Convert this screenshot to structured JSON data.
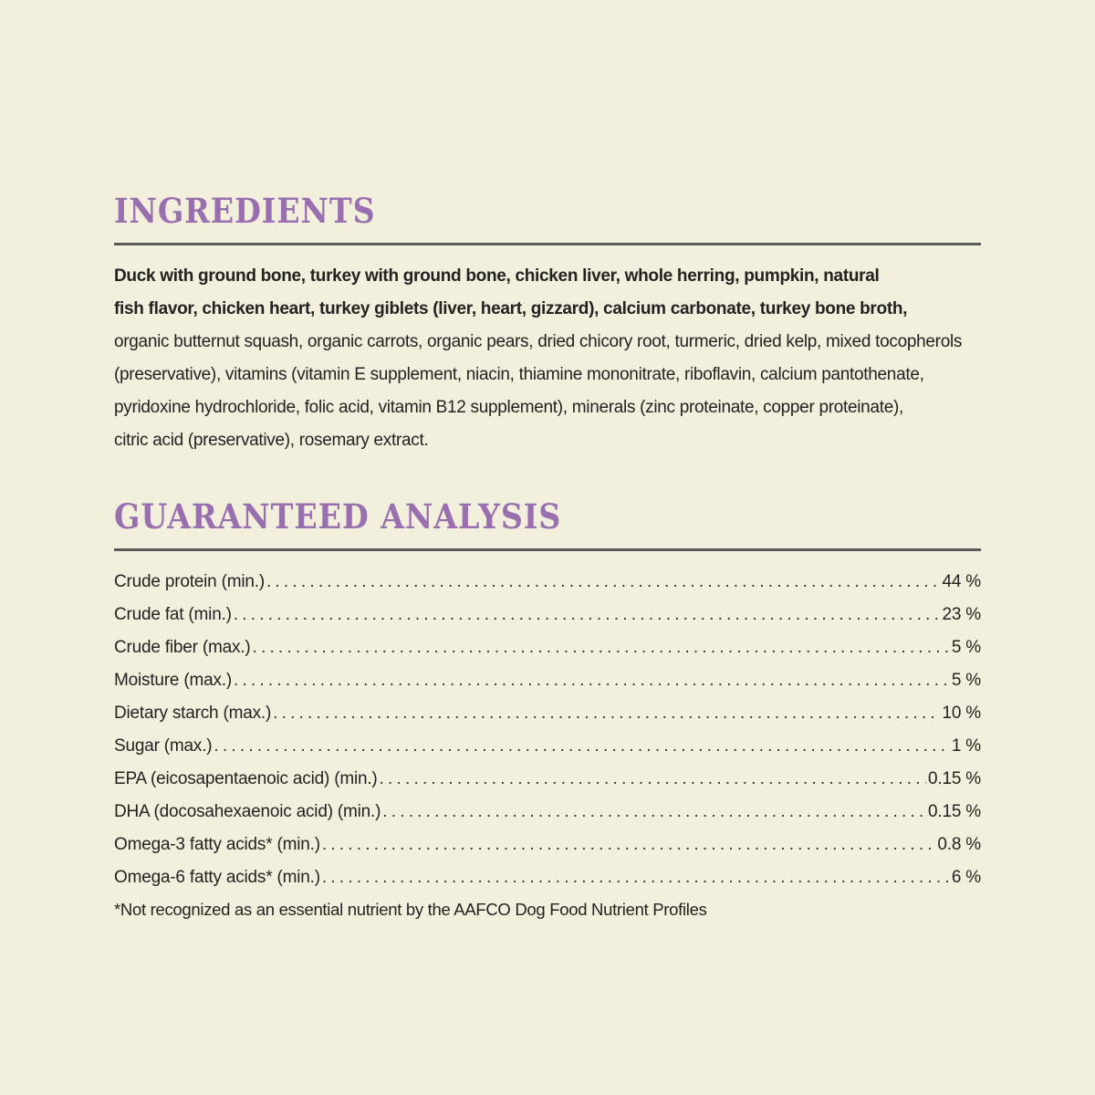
{
  "ingredients": {
    "heading": "INGREDIENTS",
    "lines": [
      {
        "text": "Duck with ground bone, turkey with ground bone, chicken liver, whole herring, pumpkin, natural",
        "bold": true
      },
      {
        "text": "fish flavor, chicken heart, turkey giblets (liver, heart, gizzard), calcium carbonate, turkey bone broth,",
        "bold": true
      },
      {
        "text": "organic butternut squash, organic carrots, organic pears, dried chicory root, turmeric, dried kelp, mixed tocopherols",
        "bold": false
      },
      {
        "text": "(preservative), vitamins (vitamin E supplement, niacin, thiamine mononitrate, riboflavin, calcium pantothenate,",
        "bold": false
      },
      {
        "text": "pyridoxine hydrochloride, folic acid, vitamin B12 supplement), minerals (zinc proteinate, copper proteinate),",
        "bold": false
      },
      {
        "text": "citric acid (preservative), rosemary extract.",
        "bold": false
      }
    ]
  },
  "analysis": {
    "heading": "GUARANTEED ANALYSIS",
    "rows": [
      {
        "label": "Crude protein (min.)",
        "value": "44 %"
      },
      {
        "label": "Crude fat (min.)",
        "value": "23 %"
      },
      {
        "label": "Crude fiber (max.)",
        "value": "5 %"
      },
      {
        "label": "Moisture (max.)",
        "value": "5 %"
      },
      {
        "label": "Dietary starch (max.)",
        "value": "10 %"
      },
      {
        "label": "Sugar (max.)",
        "value": "1 %"
      },
      {
        "label": "EPA (eicosapentaenoic acid) (min.)",
        "value": "0.15 %"
      },
      {
        "label": "DHA (docosahexaenoic acid) (min.)",
        "value": "0.15 %"
      },
      {
        "label": "Omega-3 fatty acids* (min.)",
        "value": "0.8 %"
      },
      {
        "label": "Omega-6 fatty acids* (min.)",
        "value": "6 %"
      }
    ],
    "footnote": "*Not recognized as an essential nutrient by the AAFCO Dog Food Nutrient Profiles"
  },
  "colors": {
    "background": "#f2f0dc",
    "heading": "#9a6fb0",
    "rule": "#5a5a5a",
    "text": "#222222"
  }
}
